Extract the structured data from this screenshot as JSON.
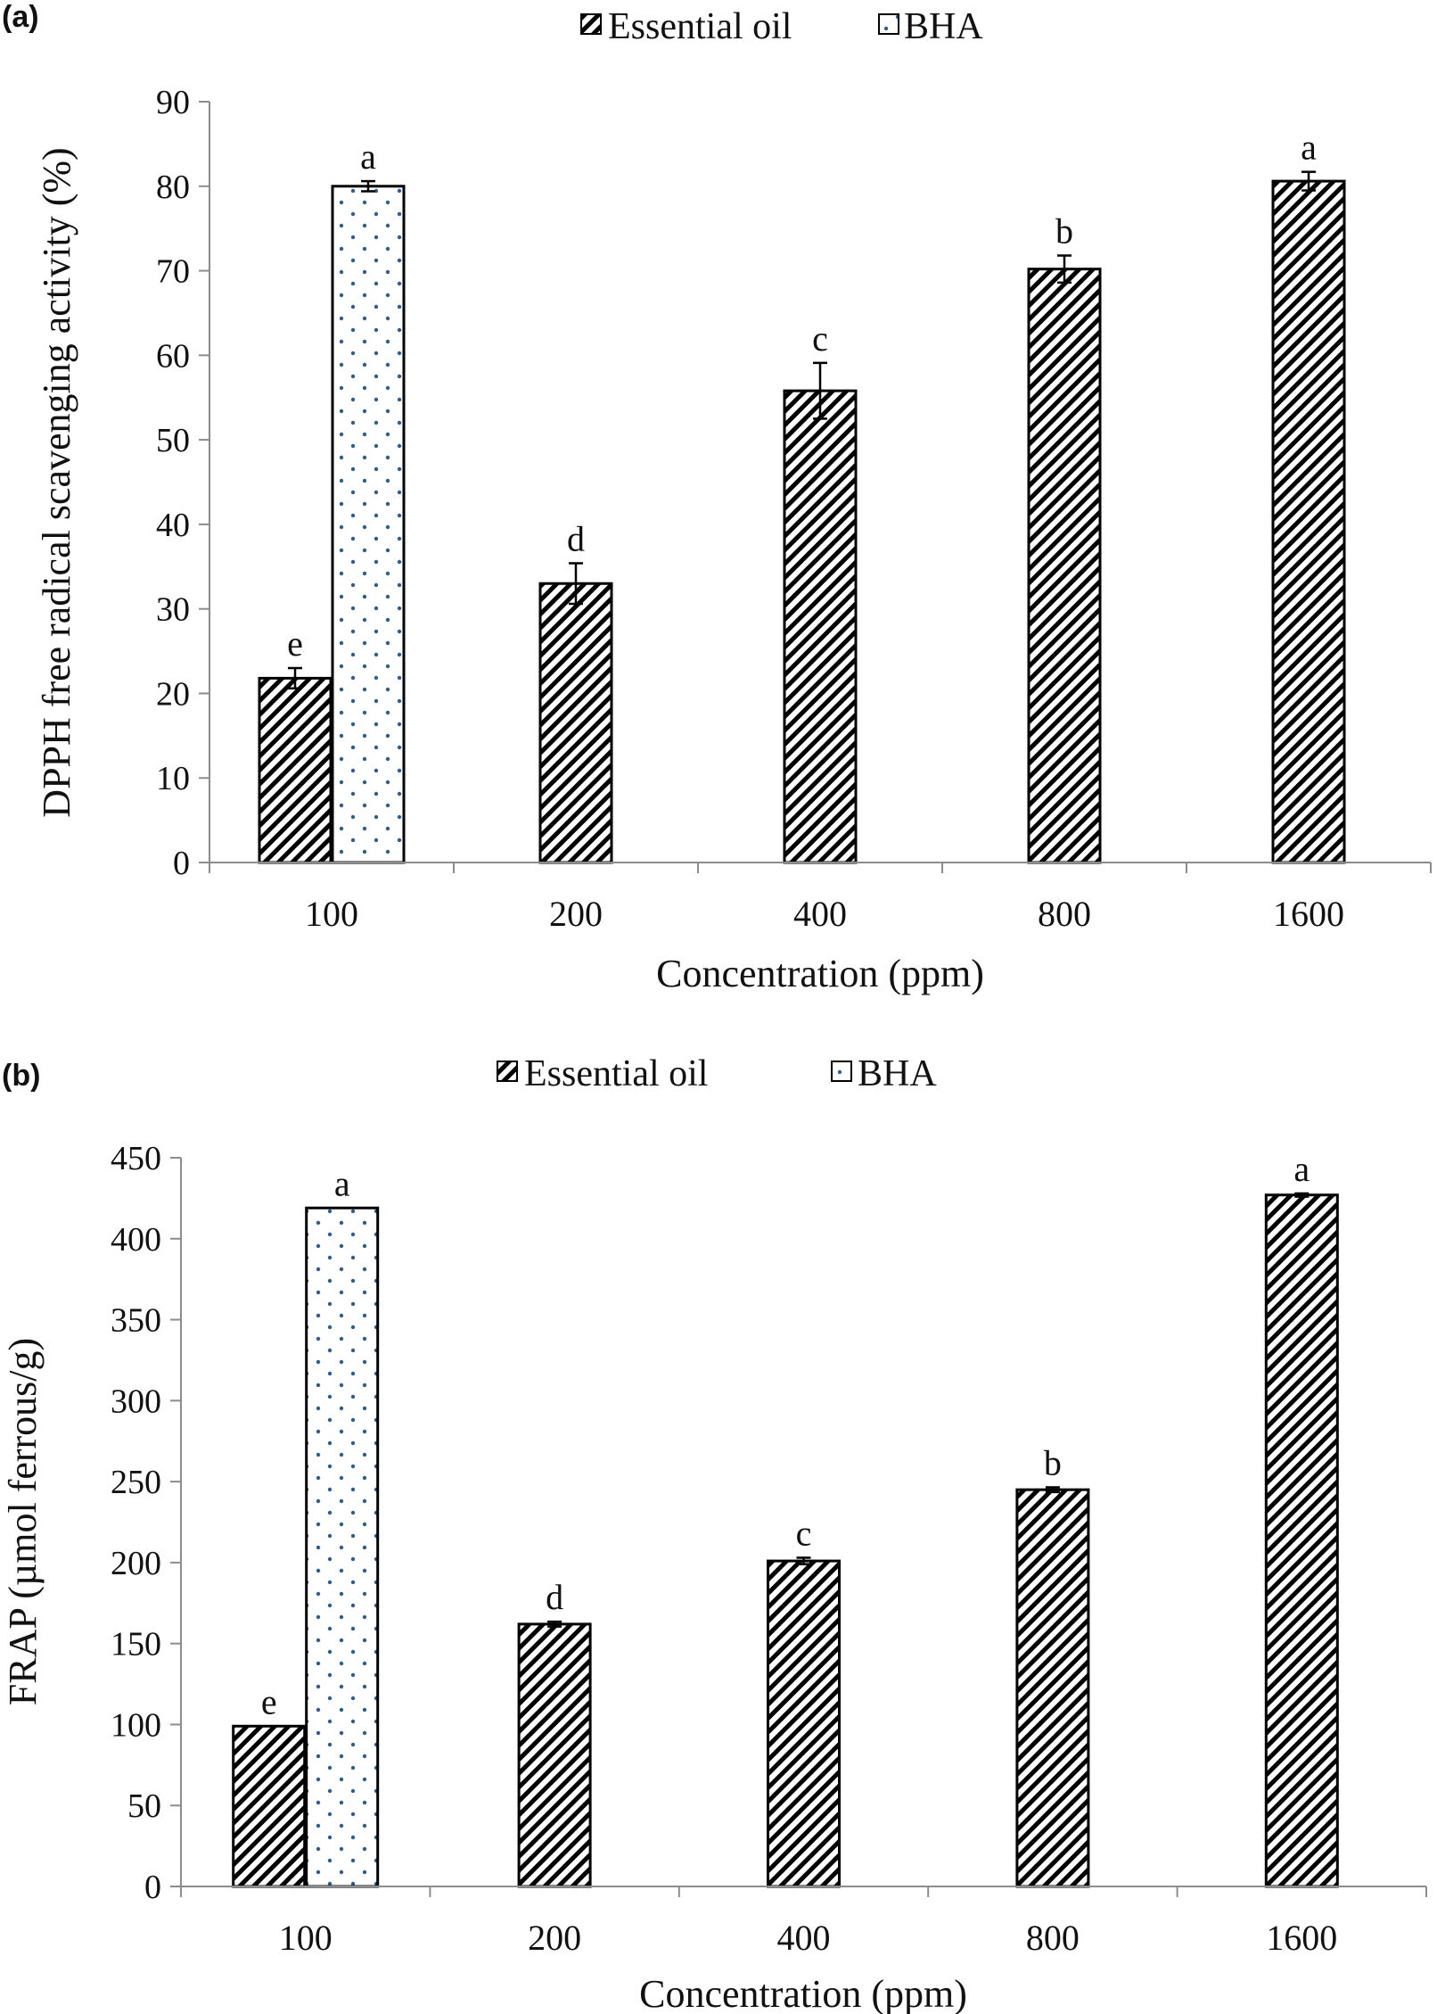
{
  "chart_data": [
    {
      "panel": "(a)",
      "type": "bar",
      "categories": [
        "100",
        "200",
        "400",
        "800",
        "1600"
      ],
      "series": [
        {
          "name": "Essential oil",
          "values": [
            21.8,
            33.0,
            55.8,
            70.2,
            80.6
          ],
          "errors": [
            1.2,
            2.4,
            3.3,
            1.6,
            1.1
          ],
          "labels": [
            "e",
            "d",
            "c",
            "b",
            "a"
          ],
          "pattern": "diagonal-hatch",
          "color": "#000000"
        },
        {
          "name": "BHA",
          "values": [
            80.0,
            null,
            null,
            null,
            null
          ],
          "errors": [
            0.6,
            null,
            null,
            null,
            null
          ],
          "labels": [
            "a",
            "",
            "",
            "",
            ""
          ],
          "pattern": "dots",
          "color": "#2f5d8a"
        }
      ],
      "xlabel": "Concentration (ppm)",
      "ylabel": "DPPH free radical scavenging activity (%)",
      "ylim": [
        0,
        90
      ],
      "yticks": [
        "0",
        "10",
        "20",
        "30",
        "40",
        "50",
        "60",
        "70",
        "80",
        "90"
      ],
      "grid": false,
      "legend": "top-center"
    },
    {
      "panel": "(b)",
      "type": "bar",
      "categories": [
        "100",
        "200",
        "400",
        "800",
        "1600"
      ],
      "series": [
        {
          "name": "Essential oil",
          "values": [
            99,
            162,
            201,
            245,
            427
          ],
          "errors": [
            0,
            1.5,
            2,
            1.5,
            1
          ],
          "labels": [
            "e",
            "d",
            "c",
            "b",
            "a"
          ],
          "pattern": "diagonal-hatch",
          "color": "#000000"
        },
        {
          "name": "BHA",
          "values": [
            419,
            null,
            null,
            null,
            null
          ],
          "errors": [
            0,
            null,
            null,
            null,
            null
          ],
          "labels": [
            "a",
            "",
            "",
            "",
            ""
          ],
          "pattern": "dots",
          "color": "#2f5d8a"
        }
      ],
      "xlabel": "Concentration (ppm)",
      "ylabel": "FRAP (µmol ferrous/g)",
      "ylim": [
        0,
        450
      ],
      "yticks": [
        "0",
        "50",
        "100",
        "150",
        "200",
        "250",
        "300",
        "350",
        "400",
        "450"
      ],
      "grid": false,
      "legend": "top-center"
    }
  ]
}
